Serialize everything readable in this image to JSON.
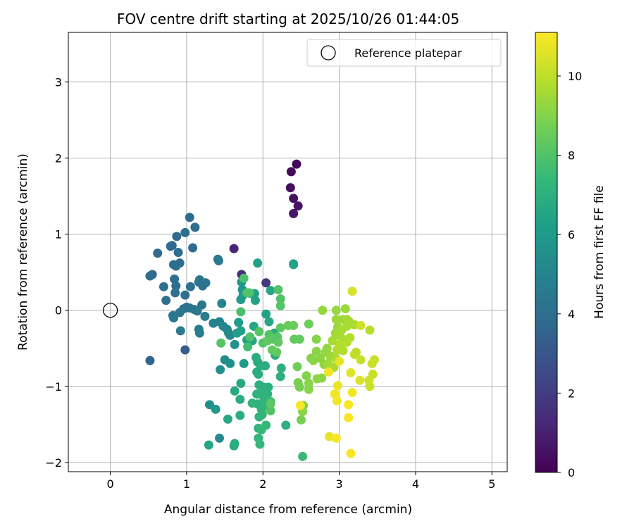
{
  "chart_data": {
    "type": "scatter",
    "title": "FOV centre drift starting at 2025/10/26 01:44:05",
    "xlabel": "Angular distance from reference (arcmin)",
    "ylabel": "Rotation from reference (arcmin)",
    "xlim": [
      -0.55,
      5.2
    ],
    "ylim": [
      -2.12,
      3.65
    ],
    "xticks": [
      0,
      1,
      2,
      3,
      4,
      5
    ],
    "yticks": [
      -2,
      -1,
      0,
      1,
      2,
      3
    ],
    "xtick_labels": [
      "0",
      "1",
      "2",
      "3",
      "4",
      "5"
    ],
    "ytick_labels": [
      "−2",
      "−1",
      "0",
      "1",
      "2",
      "3"
    ],
    "grid": true,
    "legend": {
      "position": "top-right",
      "entries": [
        "Reference platepar"
      ]
    },
    "reference_point": {
      "name": "Reference platepar",
      "x": 0,
      "y": 0
    },
    "colorbar": {
      "label": "Hours from first FF file",
      "colormap": "viridis",
      "min": 0,
      "max": 11.1,
      "ticks": [
        0,
        2,
        4,
        6,
        8,
        10
      ],
      "tick_labels": [
        "0",
        "2",
        "4",
        "6",
        "8",
        "10"
      ]
    },
    "points": [
      {
        "x": 2.44,
        "y": 1.92,
        "c": 0.2
      },
      {
        "x": 2.37,
        "y": 1.82,
        "c": 0.3
      },
      {
        "x": 2.36,
        "y": 1.61,
        "c": 0.4
      },
      {
        "x": 2.4,
        "y": 1.47,
        "c": 0.5
      },
      {
        "x": 2.46,
        "y": 1.37,
        "c": 0.6
      },
      {
        "x": 2.4,
        "y": 1.27,
        "c": 0.7
      },
      {
        "x": 1.62,
        "y": 0.81,
        "c": 1.1
      },
      {
        "x": 1.72,
        "y": 0.47,
        "c": 1.5
      },
      {
        "x": 2.04,
        "y": 0.36,
        "c": 1.8
      },
      {
        "x": 0.98,
        "y": -0.52,
        "c": 3.3
      },
      {
        "x": 0.52,
        "y": -0.66,
        "c": 3.6
      },
      {
        "x": 1.04,
        "y": 1.22,
        "c": 3.9
      },
      {
        "x": 1.11,
        "y": 1.09,
        "c": 4.0
      },
      {
        "x": 0.98,
        "y": 1.02,
        "c": 4.0
      },
      {
        "x": 0.87,
        "y": 0.97,
        "c": 3.9
      },
      {
        "x": 0.81,
        "y": 0.85,
        "c": 4.0
      },
      {
        "x": 1.08,
        "y": 0.82,
        "c": 3.9
      },
      {
        "x": 0.79,
        "y": 0.84,
        "c": 3.8
      },
      {
        "x": 0.62,
        "y": 0.75,
        "c": 3.8
      },
      {
        "x": 0.89,
        "y": 0.76,
        "c": 4.0
      },
      {
        "x": 0.83,
        "y": 0.6,
        "c": 3.9
      },
      {
        "x": 0.91,
        "y": 0.62,
        "c": 3.9
      },
      {
        "x": 0.86,
        "y": 0.58,
        "c": 4.0
      },
      {
        "x": 0.55,
        "y": 0.47,
        "c": 3.9
      },
      {
        "x": 0.52,
        "y": 0.45,
        "c": 3.9
      },
      {
        "x": 0.84,
        "y": 0.41,
        "c": 4.0
      },
      {
        "x": 0.7,
        "y": 0.31,
        "c": 4.0
      },
      {
        "x": 0.86,
        "y": 0.32,
        "c": 4.0
      },
      {
        "x": 1.05,
        "y": 0.31,
        "c": 4.1
      },
      {
        "x": 0.85,
        "y": 0.23,
        "c": 4.1
      },
      {
        "x": 0.98,
        "y": 0.2,
        "c": 4.1
      },
      {
        "x": 1.17,
        "y": 0.4,
        "c": 4.2
      },
      {
        "x": 1.2,
        "y": 0.35,
        "c": 4.1
      },
      {
        "x": 1.25,
        "y": 0.36,
        "c": 4.3
      },
      {
        "x": 1.21,
        "y": 0.32,
        "c": 4.2
      },
      {
        "x": 1.16,
        "y": 0.37,
        "c": 4.3
      },
      {
        "x": 0.73,
        "y": 0.13,
        "c": 4.1
      },
      {
        "x": 1.0,
        "y": 0.04,
        "c": 4.1
      },
      {
        "x": 0.96,
        "y": 0.02,
        "c": 4.2
      },
      {
        "x": 1.04,
        "y": 0.03,
        "c": 4.2
      },
      {
        "x": 1.1,
        "y": 0.01,
        "c": 4.3
      },
      {
        "x": 1.2,
        "y": 0.07,
        "c": 4.3
      },
      {
        "x": 0.91,
        "y": -0.03,
        "c": 4.4
      },
      {
        "x": 1.14,
        "y": -0.01,
        "c": 4.4
      },
      {
        "x": 0.82,
        "y": -0.07,
        "c": 4.3
      },
      {
        "x": 0.83,
        "y": -0.1,
        "c": 4.4
      },
      {
        "x": 1.24,
        "y": -0.08,
        "c": 4.6
      },
      {
        "x": 0.92,
        "y": -0.27,
        "c": 4.6
      },
      {
        "x": 1.16,
        "y": -0.25,
        "c": 4.7
      },
      {
        "x": 1.17,
        "y": -0.3,
        "c": 4.7
      },
      {
        "x": 1.35,
        "y": -0.17,
        "c": 4.9
      },
      {
        "x": 1.43,
        "y": -0.15,
        "c": 4.9
      },
      {
        "x": 1.42,
        "y": 0.65,
        "c": 4.5
      },
      {
        "x": 1.41,
        "y": 0.67,
        "c": 4.5
      },
      {
        "x": 1.46,
        "y": 0.09,
        "c": 5.0
      },
      {
        "x": 1.48,
        "y": -0.21,
        "c": 5.0
      },
      {
        "x": 1.53,
        "y": -0.25,
        "c": 5.1
      },
      {
        "x": 1.55,
        "y": -0.3,
        "c": 5.2
      },
      {
        "x": 1.57,
        "y": -0.33,
        "c": 5.3
      },
      {
        "x": 1.63,
        "y": -0.45,
        "c": 5.5
      },
      {
        "x": 1.5,
        "y": -0.65,
        "c": 5.4
      },
      {
        "x": 1.57,
        "y": -0.7,
        "c": 5.5
      },
      {
        "x": 1.44,
        "y": -0.78,
        "c": 5.5
      },
      {
        "x": 1.43,
        "y": -1.68,
        "c": 5.3
      },
      {
        "x": 1.3,
        "y": -1.24,
        "c": 5.5
      },
      {
        "x": 1.38,
        "y": -1.3,
        "c": 5.9
      },
      {
        "x": 1.29,
        "y": -1.77,
        "c": 6.5
      },
      {
        "x": 1.62,
        "y": -1.78,
        "c": 6.8
      },
      {
        "x": 1.63,
        "y": -1.75,
        "c": 6.8
      },
      {
        "x": 1.54,
        "y": -1.43,
        "c": 6.7
      },
      {
        "x": 1.7,
        "y": -1.38,
        "c": 6.9
      },
      {
        "x": 1.7,
        "y": -1.17,
        "c": 6.8
      },
      {
        "x": 1.63,
        "y": -1.06,
        "c": 6.7
      },
      {
        "x": 1.71,
        "y": -0.96,
        "c": 6.7
      },
      {
        "x": 1.72,
        "y": 0.37,
        "c": 5.8
      },
      {
        "x": 1.73,
        "y": 0.27,
        "c": 5.9
      },
      {
        "x": 1.71,
        "y": 0.14,
        "c": 6.0
      },
      {
        "x": 1.74,
        "y": 0.2,
        "c": 6.0
      },
      {
        "x": 1.68,
        "y": -0.16,
        "c": 6.1
      },
      {
        "x": 1.71,
        "y": -0.27,
        "c": 6.2
      },
      {
        "x": 1.66,
        "y": -0.3,
        "c": 6.2
      },
      {
        "x": 1.75,
        "y": -0.7,
        "c": 6.1
      },
      {
        "x": 1.79,
        "y": -0.39,
        "c": 6.4
      },
      {
        "x": 1.86,
        "y": -0.4,
        "c": 6.5
      },
      {
        "x": 1.89,
        "y": 0.22,
        "c": 6.2
      },
      {
        "x": 1.93,
        "y": 0.62,
        "c": 6.3
      },
      {
        "x": 1.9,
        "y": 0.13,
        "c": 6.4
      },
      {
        "x": 1.84,
        "y": 0.22,
        "c": 6.4
      },
      {
        "x": 2.04,
        "y": -0.05,
        "c": 6.4
      },
      {
        "x": 2.1,
        "y": 0.26,
        "c": 6.5
      },
      {
        "x": 1.88,
        "y": -0.21,
        "c": 6.5
      },
      {
        "x": 2.08,
        "y": -0.15,
        "c": 6.6
      },
      {
        "x": 2.15,
        "y": -0.3,
        "c": 6.6
      },
      {
        "x": 2.4,
        "y": 0.6,
        "c": 6.4
      },
      {
        "x": 2.4,
        "y": 0.61,
        "c": 6.4
      },
      {
        "x": 1.91,
        "y": -0.62,
        "c": 6.8
      },
      {
        "x": 1.93,
        "y": -0.68,
        "c": 6.8
      },
      {
        "x": 1.97,
        "y": -0.73,
        "c": 6.8
      },
      {
        "x": 2.03,
        "y": -0.73,
        "c": 6.9
      },
      {
        "x": 1.92,
        "y": -0.81,
        "c": 6.9
      },
      {
        "x": 1.94,
        "y": -0.84,
        "c": 6.9
      },
      {
        "x": 2.16,
        "y": -0.59,
        "c": 6.9
      },
      {
        "x": 2.24,
        "y": -0.76,
        "c": 7.0
      },
      {
        "x": 2.23,
        "y": -0.87,
        "c": 7.0
      },
      {
        "x": 1.95,
        "y": -0.98,
        "c": 7.0
      },
      {
        "x": 2.01,
        "y": -1.01,
        "c": 7.0
      },
      {
        "x": 2.07,
        "y": -1.01,
        "c": 7.0
      },
      {
        "x": 1.92,
        "y": -1.1,
        "c": 7.0
      },
      {
        "x": 1.97,
        "y": -1.08,
        "c": 7.1
      },
      {
        "x": 2.0,
        "y": -1.13,
        "c": 7.1
      },
      {
        "x": 2.03,
        "y": -1.18,
        "c": 7.1
      },
      {
        "x": 2.06,
        "y": -1.1,
        "c": 7.1
      },
      {
        "x": 1.93,
        "y": -1.23,
        "c": 7.1
      },
      {
        "x": 1.86,
        "y": -1.22,
        "c": 7.2
      },
      {
        "x": 2.05,
        "y": -1.24,
        "c": 7.2
      },
      {
        "x": 1.98,
        "y": -1.3,
        "c": 7.2
      },
      {
        "x": 1.95,
        "y": -1.4,
        "c": 7.2
      },
      {
        "x": 1.99,
        "y": -1.37,
        "c": 7.3
      },
      {
        "x": 1.94,
        "y": -1.55,
        "c": 7.3
      },
      {
        "x": 1.94,
        "y": -1.68,
        "c": 7.3
      },
      {
        "x": 1.98,
        "y": -1.57,
        "c": 7.4
      },
      {
        "x": 2.04,
        "y": -1.51,
        "c": 7.4
      },
      {
        "x": 1.96,
        "y": -1.76,
        "c": 7.4
      },
      {
        "x": 2.3,
        "y": -1.51,
        "c": 7.0
      },
      {
        "x": 2.52,
        "y": -1.92,
        "c": 7.5
      },
      {
        "x": 2.1,
        "y": -1.2,
        "c": 7.7
      },
      {
        "x": 2.2,
        "y": 0.27,
        "c": 8.0
      },
      {
        "x": 2.23,
        "y": 0.15,
        "c": 8.0
      },
      {
        "x": 2.23,
        "y": 0.06,
        "c": 8.1
      },
      {
        "x": 1.79,
        "y": 0.23,
        "c": 7.9
      },
      {
        "x": 1.82,
        "y": 0.23,
        "c": 8.0
      },
      {
        "x": 1.75,
        "y": 0.42,
        "c": 7.9
      },
      {
        "x": 1.71,
        "y": -0.02,
        "c": 7.9
      },
      {
        "x": 1.8,
        "y": -0.48,
        "c": 7.7
      },
      {
        "x": 1.83,
        "y": -0.35,
        "c": 8.0
      },
      {
        "x": 1.95,
        "y": -0.28,
        "c": 8.1
      },
      {
        "x": 2.0,
        "y": -0.43,
        "c": 8.1
      },
      {
        "x": 2.08,
        "y": -0.32,
        "c": 8.1
      },
      {
        "x": 2.13,
        "y": -0.38,
        "c": 8.2
      },
      {
        "x": 2.19,
        "y": -0.35,
        "c": 8.2
      },
      {
        "x": 2.2,
        "y": -0.42,
        "c": 8.3
      },
      {
        "x": 2.23,
        "y": -0.23,
        "c": 8.3
      },
      {
        "x": 2.12,
        "y": -0.52,
        "c": 8.4
      },
      {
        "x": 2.18,
        "y": -0.55,
        "c": 8.4
      },
      {
        "x": 2.06,
        "y": -0.4,
        "c": 8.3
      },
      {
        "x": 1.45,
        "y": -0.43,
        "c": 8.1
      },
      {
        "x": 2.33,
        "y": -0.2,
        "c": 8.5
      },
      {
        "x": 2.4,
        "y": -0.2,
        "c": 8.5
      },
      {
        "x": 2.48,
        "y": -0.38,
        "c": 8.4
      },
      {
        "x": 2.41,
        "y": -0.38,
        "c": 8.4
      },
      {
        "x": 2.45,
        "y": -0.74,
        "c": 8.7
      },
      {
        "x": 2.46,
        "y": -0.95,
        "c": 8.8
      },
      {
        "x": 2.48,
        "y": -1.01,
        "c": 8.8
      },
      {
        "x": 2.53,
        "y": -1.25,
        "c": 9.0
      },
      {
        "x": 2.52,
        "y": -1.33,
        "c": 9.1
      },
      {
        "x": 2.5,
        "y": -1.44,
        "c": 8.8
      },
      {
        "x": 2.1,
        "y": -1.32,
        "c": 8.0
      },
      {
        "x": 2.1,
        "y": -1.23,
        "c": 8.2
      },
      {
        "x": 2.57,
        "y": -0.86,
        "c": 9.0
      },
      {
        "x": 2.6,
        "y": -0.96,
        "c": 9.1
      },
      {
        "x": 2.6,
        "y": -1.04,
        "c": 9.1
      },
      {
        "x": 2.6,
        "y": -0.18,
        "c": 8.6
      },
      {
        "x": 2.63,
        "y": -0.63,
        "c": 9.0
      },
      {
        "x": 2.7,
        "y": -0.38,
        "c": 9.0
      },
      {
        "x": 2.66,
        "y": -0.66,
        "c": 9.1
      },
      {
        "x": 2.7,
        "y": -0.54,
        "c": 9.1
      },
      {
        "x": 2.71,
        "y": -0.9,
        "c": 9.1
      },
      {
        "x": 2.75,
        "y": -0.63,
        "c": 9.2
      },
      {
        "x": 2.77,
        "y": -0.89,
        "c": 9.2
      },
      {
        "x": 2.8,
        "y": -0.71,
        "c": 9.2
      },
      {
        "x": 2.82,
        "y": -0.55,
        "c": 9.3
      },
      {
        "x": 2.84,
        "y": -0.5,
        "c": 9.3
      },
      {
        "x": 2.88,
        "y": -0.6,
        "c": 9.4
      },
      {
        "x": 2.85,
        "y": -0.7,
        "c": 9.5
      },
      {
        "x": 2.87,
        "y": -0.78,
        "c": 9.6
      },
      {
        "x": 2.93,
        "y": -0.75,
        "c": 9.7
      },
      {
        "x": 2.95,
        "y": -0.63,
        "c": 9.7
      },
      {
        "x": 2.91,
        "y": -0.4,
        "c": 9.6
      },
      {
        "x": 2.95,
        "y": -0.3,
        "c": 9.5
      },
      {
        "x": 2.98,
        "y": -0.22,
        "c": 9.4
      },
      {
        "x": 2.96,
        "y": -0.12,
        "c": 9.4
      },
      {
        "x": 2.96,
        "y": 0.0,
        "c": 9.3
      },
      {
        "x": 2.78,
        "y": 0.0,
        "c": 9.3
      },
      {
        "x": 3.08,
        "y": 0.02,
        "c": 9.4
      },
      {
        "x": 3.05,
        "y": -0.12,
        "c": 9.5
      },
      {
        "x": 3.1,
        "y": -0.12,
        "c": 9.6
      },
      {
        "x": 3.13,
        "y": -0.15,
        "c": 9.6
      },
      {
        "x": 3.1,
        "y": -0.21,
        "c": 9.7
      },
      {
        "x": 3.03,
        "y": -0.26,
        "c": 9.6
      },
      {
        "x": 3.0,
        "y": -0.33,
        "c": 9.6
      },
      {
        "x": 3.05,
        "y": -0.38,
        "c": 9.7
      },
      {
        "x": 3.0,
        "y": -0.45,
        "c": 9.8
      },
      {
        "x": 2.97,
        "y": -0.52,
        "c": 9.8
      },
      {
        "x": 3.05,
        "y": -0.53,
        "c": 9.8
      },
      {
        "x": 3.1,
        "y": -0.42,
        "c": 9.8
      },
      {
        "x": 3.14,
        "y": -0.36,
        "c": 9.8
      },
      {
        "x": 3.2,
        "y": -0.19,
        "c": 9.7
      },
      {
        "x": 3.28,
        "y": -0.2,
        "c": 10.3
      },
      {
        "x": 3.4,
        "y": -0.26,
        "c": 9.9
      },
      {
        "x": 3.17,
        "y": 0.25,
        "c": 10.4
      },
      {
        "x": 3.2,
        "y": -0.58,
        "c": 10.0
      },
      {
        "x": 3.22,
        "y": -0.55,
        "c": 10.0
      },
      {
        "x": 3.28,
        "y": -0.65,
        "c": 10.1
      },
      {
        "x": 3.43,
        "y": -0.7,
        "c": 10.2
      },
      {
        "x": 3.46,
        "y": -0.65,
        "c": 10.2
      },
      {
        "x": 3.44,
        "y": -0.84,
        "c": 10.2
      },
      {
        "x": 3.39,
        "y": -0.92,
        "c": 10.3
      },
      {
        "x": 3.4,
        "y": -1.0,
        "c": 10.3
      },
      {
        "x": 3.27,
        "y": -0.92,
        "c": 10.5
      },
      {
        "x": 3.15,
        "y": -0.82,
        "c": 10.6
      },
      {
        "x": 3.0,
        "y": -0.67,
        "c": 10.7
      },
      {
        "x": 2.86,
        "y": -0.81,
        "c": 10.8
      },
      {
        "x": 2.98,
        "y": -0.99,
        "c": 10.8
      },
      {
        "x": 2.94,
        "y": -1.1,
        "c": 10.9
      },
      {
        "x": 2.97,
        "y": -1.19,
        "c": 10.9
      },
      {
        "x": 3.17,
        "y": -1.08,
        "c": 10.9
      },
      {
        "x": 3.12,
        "y": -1.24,
        "c": 11.0
      },
      {
        "x": 3.12,
        "y": -1.41,
        "c": 11.0
      },
      {
        "x": 2.87,
        "y": -1.66,
        "c": 10.7
      },
      {
        "x": 2.96,
        "y": -1.68,
        "c": 11.0
      },
      {
        "x": 3.15,
        "y": -1.88,
        "c": 11.0
      },
      {
        "x": 2.49,
        "y": -1.25,
        "c": 11.0
      }
    ]
  }
}
